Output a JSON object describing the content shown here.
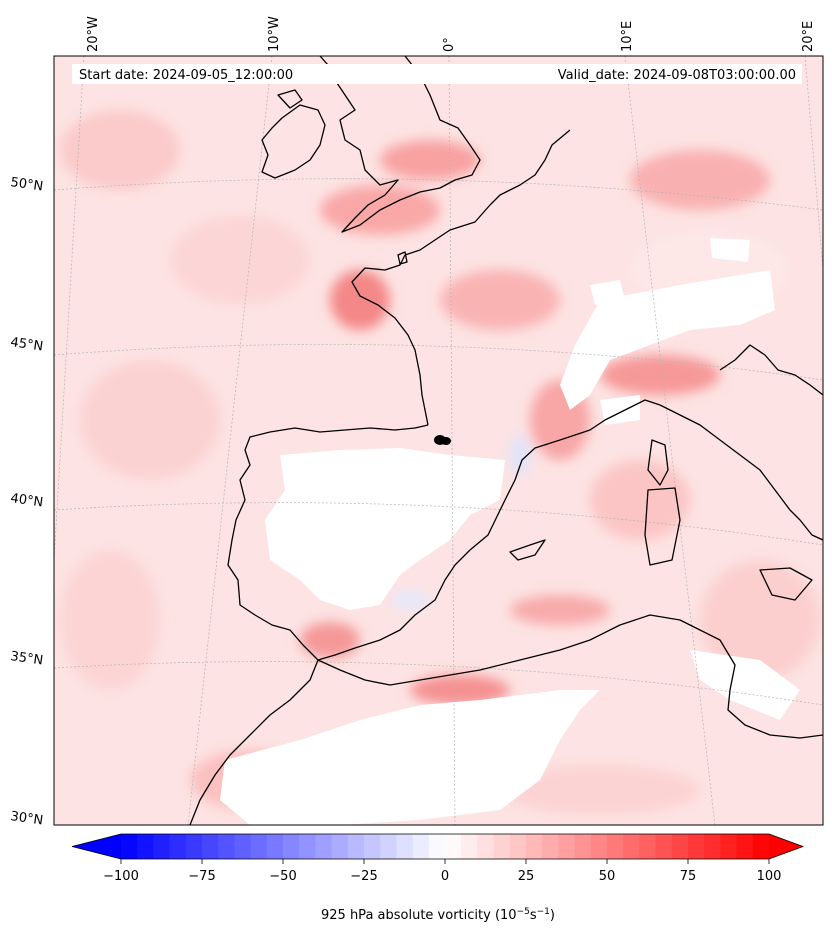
{
  "map": {
    "start_date": "Start date: 2024-09-05_12:00:00",
    "valid_date": "Valid_date: 2024-09-08T03:00:00.00",
    "longitude_labels": [
      "20°W",
      "10°W",
      "0°",
      "10°E",
      "20°E"
    ],
    "latitude_labels": [
      "50°N",
      "45°N",
      "40°N",
      "35°N",
      "30°N"
    ],
    "coastline_color": "#000000",
    "gridlines": true
  },
  "colorbar": {
    "title": "925 hPa absolute vorticity (10",
    "title_exp1": "−5",
    "title_mid": "s",
    "title_exp2": "−1",
    "title_end": ")",
    "tick_labels": [
      "−100",
      "−75",
      "−50",
      "−25",
      "0",
      "25",
      "50",
      "75",
      "100"
    ],
    "range": [
      -100,
      100
    ],
    "step": 5,
    "extend": "both",
    "cmap": "bwr",
    "low_color": "#0000ff",
    "mid_color": "#ffffff",
    "high_color": "#ff0000"
  }
}
